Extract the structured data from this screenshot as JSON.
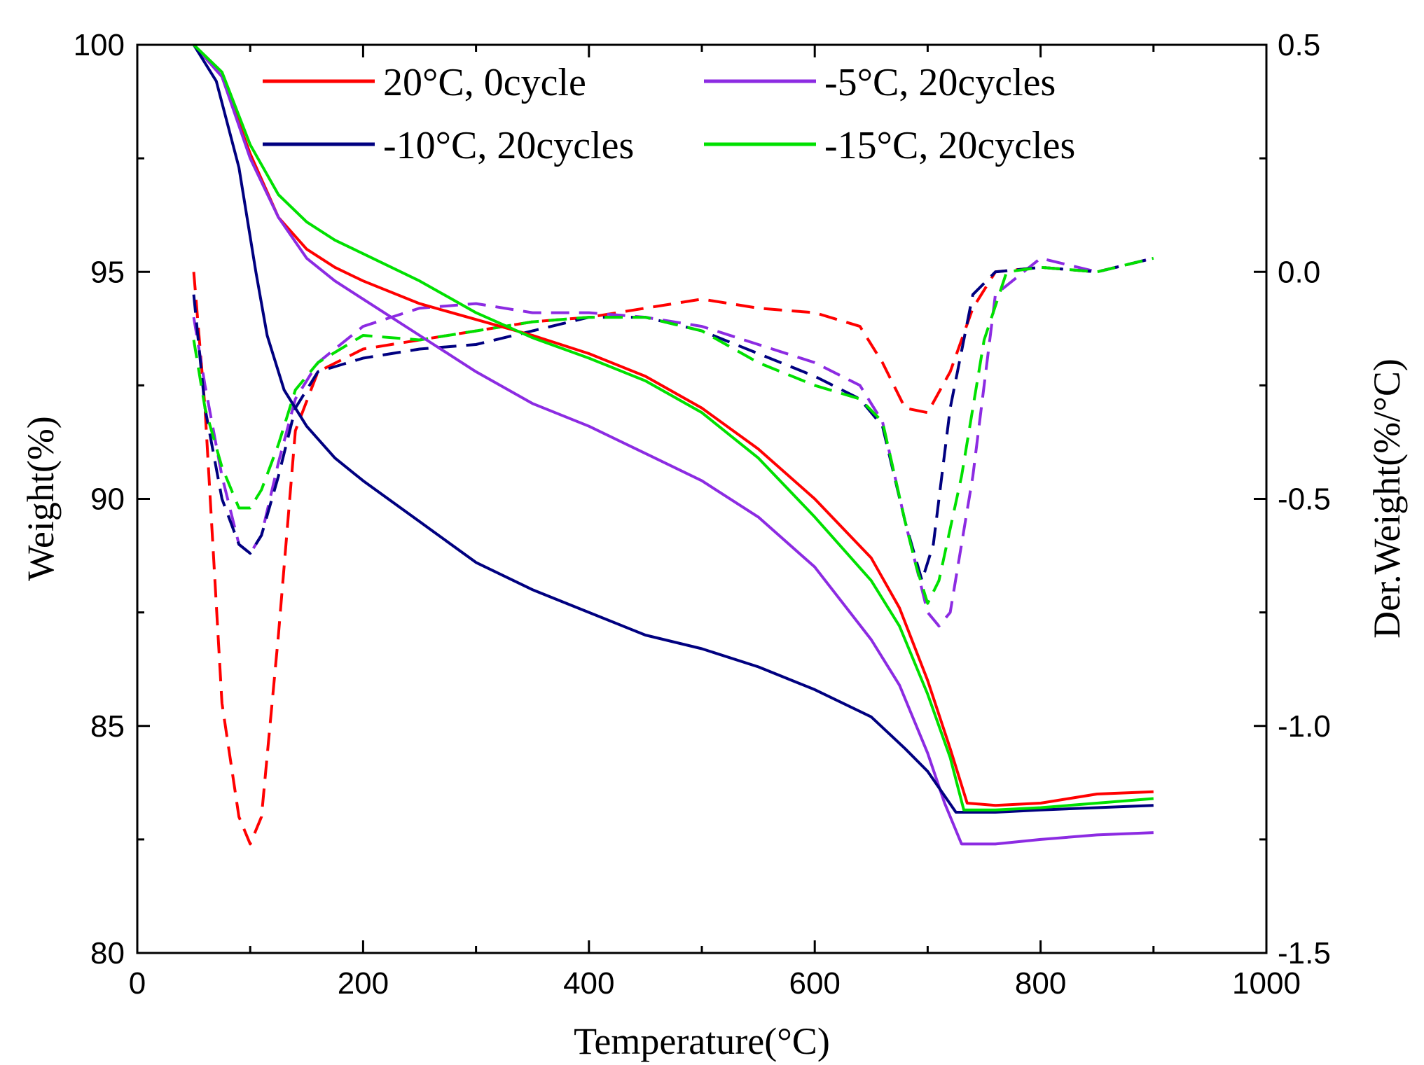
{
  "chart_data": {
    "type": "line",
    "title": "",
    "xlabel": "Temperature(°C)",
    "ylabel_left": "Weight(%)",
    "ylabel_right": "Der.Weight(%/°C)",
    "xlim": [
      0,
      1000
    ],
    "ylim_left": [
      80,
      100
    ],
    "ylim_right": [
      -1.5,
      0.5
    ],
    "x_ticks": [
      "0",
      "200",
      "400",
      "600",
      "800",
      "1000"
    ],
    "y_left_ticks": [
      "80",
      "85",
      "90",
      "95",
      "100"
    ],
    "y_right_ticks": [
      "-1.5",
      "-1.0",
      "-0.5",
      "0.0",
      "0.5"
    ],
    "grid": false,
    "legend_position": "top",
    "colors": {
      "20C_0cycle": "#ff0000",
      "m5C_20cycles": "#8c2be2",
      "m10C_20cycles": "#000080",
      "m15C_20cycles": "#00e000"
    },
    "legend": [
      {
        "key": "20C_0cycle",
        "label": "20°C, 0cycle"
      },
      {
        "key": "m5C_20cycles",
        "label": "-5°C, 20cycles"
      },
      {
        "key": "m10C_20cycles",
        "label": "-10°C, 20cycles"
      },
      {
        "key": "m15C_20cycles",
        "label": "-15°C, 20cycles"
      }
    ],
    "weight_series": [
      {
        "key": "20C_0cycle",
        "name": "20°C, 0cycle",
        "axis": "left",
        "style": "solid",
        "x": [
          50,
          75,
          100,
          125,
          150,
          175,
          200,
          250,
          300,
          350,
          400,
          450,
          500,
          550,
          600,
          650,
          675,
          700,
          720,
          735,
          760,
          800,
          850,
          900
        ],
        "y": [
          100,
          99.3,
          97.6,
          96.2,
          95.5,
          95.1,
          94.8,
          94.3,
          93.95,
          93.6,
          93.2,
          92.7,
          92.0,
          91.1,
          90.0,
          88.7,
          87.6,
          86.0,
          84.5,
          83.3,
          83.25,
          83.3,
          83.5,
          83.55
        ]
      },
      {
        "key": "m5C_20cycles",
        "name": "-5°C, 20cycles",
        "axis": "left",
        "style": "solid",
        "x": [
          50,
          75,
          100,
          125,
          150,
          175,
          200,
          250,
          300,
          350,
          400,
          450,
          500,
          550,
          600,
          650,
          675,
          700,
          715,
          730,
          760,
          800,
          850,
          900
        ],
        "y": [
          100,
          99.3,
          97.5,
          96.2,
          95.3,
          94.8,
          94.4,
          93.6,
          92.8,
          92.1,
          91.6,
          91.0,
          90.4,
          89.6,
          88.5,
          86.9,
          85.9,
          84.4,
          83.3,
          82.4,
          82.4,
          82.5,
          82.6,
          82.65
        ]
      },
      {
        "key": "m10C_20cycles",
        "name": "-10°C, 20cycles",
        "axis": "left",
        "style": "solid",
        "x": [
          50,
          70,
          90,
          105,
          115,
          130,
          150,
          175,
          200,
          250,
          300,
          350,
          400,
          450,
          500,
          550,
          600,
          650,
          680,
          700,
          725,
          760,
          800,
          850,
          900
        ],
        "y": [
          100,
          99.2,
          97.3,
          95.0,
          93.6,
          92.4,
          91.6,
          90.9,
          90.4,
          89.5,
          88.6,
          88.0,
          87.5,
          87.0,
          86.7,
          86.3,
          85.8,
          85.2,
          84.5,
          84.0,
          83.1,
          83.1,
          83.15,
          83.2,
          83.25
        ]
      },
      {
        "key": "m15C_20cycles",
        "name": "-15°C, 20cycles",
        "axis": "left",
        "style": "solid",
        "x": [
          50,
          75,
          100,
          125,
          150,
          175,
          200,
          250,
          300,
          350,
          400,
          450,
          500,
          550,
          600,
          650,
          675,
          700,
          720,
          732,
          760,
          800,
          850,
          900
        ],
        "y": [
          100,
          99.4,
          97.8,
          96.7,
          96.1,
          95.7,
          95.4,
          94.8,
          94.1,
          93.55,
          93.1,
          92.6,
          91.9,
          90.9,
          89.6,
          88.2,
          87.2,
          85.7,
          84.3,
          83.15,
          83.15,
          83.2,
          83.3,
          83.4
        ]
      }
    ],
    "derivative_series": [
      {
        "key": "20C_0cycle",
        "name": "20°C, 0cycle (derivative)",
        "axis": "right",
        "style": "dashed",
        "x": [
          50,
          60,
          75,
          90,
          100,
          110,
          125,
          140,
          160,
          200,
          250,
          300,
          350,
          400,
          450,
          500,
          550,
          600,
          640,
          660,
          680,
          700,
          720,
          740,
          760,
          800,
          850,
          900
        ],
        "y": [
          0.0,
          -0.3,
          -0.95,
          -1.2,
          -1.26,
          -1.2,
          -0.8,
          -0.35,
          -0.22,
          -0.17,
          -0.15,
          -0.13,
          -0.11,
          -0.1,
          -0.08,
          -0.06,
          -0.08,
          -0.09,
          -0.12,
          -0.2,
          -0.3,
          -0.31,
          -0.22,
          -0.08,
          0.0,
          0.01,
          0.0,
          0.03
        ]
      },
      {
        "key": "m5C_20cycles",
        "name": "-5°C, 20cycles (derivative)",
        "axis": "right",
        "style": "dashed",
        "x": [
          50,
          60,
          75,
          90,
          100,
          110,
          125,
          140,
          160,
          200,
          250,
          300,
          350,
          400,
          450,
          500,
          550,
          600,
          640,
          660,
          680,
          700,
          710,
          720,
          740,
          760,
          800,
          850,
          900
        ],
        "y": [
          -0.1,
          -0.25,
          -0.45,
          -0.6,
          -0.62,
          -0.58,
          -0.42,
          -0.28,
          -0.2,
          -0.12,
          -0.08,
          -0.07,
          -0.09,
          -0.09,
          -0.1,
          -0.12,
          -0.16,
          -0.2,
          -0.25,
          -0.33,
          -0.55,
          -0.75,
          -0.78,
          -0.75,
          -0.45,
          -0.05,
          0.03,
          0.0,
          0.03
        ]
      },
      {
        "key": "m10C_20cycles",
        "name": "-10°C, 20cycles (derivative)",
        "axis": "right",
        "style": "dashed",
        "x": [
          50,
          60,
          75,
          90,
          100,
          110,
          125,
          140,
          160,
          200,
          250,
          300,
          350,
          400,
          450,
          500,
          550,
          600,
          640,
          660,
          680,
          695,
          705,
          720,
          740,
          760,
          800,
          850,
          900
        ],
        "y": [
          -0.05,
          -0.3,
          -0.5,
          -0.6,
          -0.62,
          -0.58,
          -0.45,
          -0.3,
          -0.22,
          -0.19,
          -0.17,
          -0.16,
          -0.13,
          -0.1,
          -0.1,
          -0.13,
          -0.18,
          -0.23,
          -0.28,
          -0.34,
          -0.55,
          -0.68,
          -0.6,
          -0.3,
          -0.05,
          0.0,
          0.01,
          0.0,
          0.03
        ]
      },
      {
        "key": "m15C_20cycles",
        "name": "-15°C, 20cycles (derivative)",
        "axis": "right",
        "style": "dashed",
        "x": [
          50,
          60,
          75,
          90,
          100,
          110,
          125,
          140,
          160,
          200,
          250,
          300,
          350,
          400,
          450,
          500,
          550,
          600,
          640,
          660,
          680,
          690,
          700,
          710,
          730,
          750,
          770,
          800,
          850,
          900
        ],
        "y": [
          -0.15,
          -0.3,
          -0.43,
          -0.52,
          -0.52,
          -0.48,
          -0.38,
          -0.26,
          -0.2,
          -0.14,
          -0.15,
          -0.13,
          -0.11,
          -0.1,
          -0.1,
          -0.13,
          -0.2,
          -0.25,
          -0.28,
          -0.33,
          -0.55,
          -0.65,
          -0.73,
          -0.68,
          -0.45,
          -0.15,
          0.0,
          0.01,
          0.0,
          0.03
        ]
      }
    ]
  }
}
